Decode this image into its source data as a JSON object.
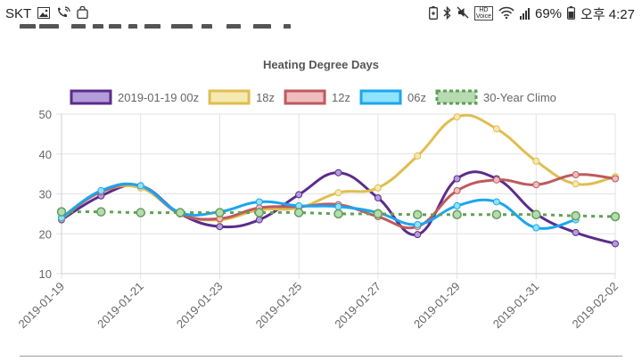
{
  "status_bar": {
    "operator": "SKT",
    "battery": "69%",
    "clock": "오후 4:27",
    "hd_badge": "HD",
    "hd_voice": "Voice",
    "icons": [
      "image-icon",
      "wifi-call-icon",
      "shopping-bag-icon",
      "battery-saver-icon",
      "bluetooth-icon",
      "mute-icon",
      "hd-voice-icon",
      "wifi-icon",
      "signal-icon"
    ]
  },
  "chart_data": {
    "type": "line",
    "title": "Heating Degree Days",
    "xlabel": "",
    "ylabel": "",
    "ylim": [
      10,
      50
    ],
    "yticks": [
      10,
      20,
      30,
      40,
      50
    ],
    "xlim": [
      "2019-01-19",
      "2019-02-02"
    ],
    "xticks": [
      "2019-01-19",
      "2019-01-21",
      "2019-01-23",
      "2019-01-25",
      "2019-01-27",
      "2019-01-29",
      "2019-01-31",
      "2019-02-02"
    ],
    "grid": true,
    "legend_position": "top",
    "series": [
      {
        "name": "2019-01-19 00z",
        "stroke": "#5b2c8b",
        "fill": "#b39ddb",
        "dashed": false,
        "points": [
          [
            "2019-01-19",
            23.5
          ],
          [
            "2019-01-20",
            29.5
          ],
          [
            "2019-01-21",
            32
          ],
          [
            "2019-01-22",
            25
          ],
          [
            "2019-01-23",
            21.8
          ],
          [
            "2019-01-24",
            23.5
          ],
          [
            "2019-01-25",
            29.8
          ],
          [
            "2019-01-26",
            35.3
          ],
          [
            "2019-01-27",
            29
          ],
          [
            "2019-01-28",
            19.8
          ],
          [
            "2019-01-29",
            33.8
          ],
          [
            "2019-01-30",
            33.8
          ],
          [
            "2019-01-31",
            25
          ],
          [
            "2019-02-01",
            20.3
          ],
          [
            "2019-02-02",
            17.5
          ]
        ]
      },
      {
        "name": "18z",
        "stroke": "#e0be50",
        "fill": "#f5e8b0",
        "dashed": false,
        "points": [
          [
            "2019-01-19",
            23.8
          ],
          [
            "2019-01-20",
            30.5
          ],
          [
            "2019-01-21",
            31.5
          ],
          [
            "2019-01-22",
            25
          ],
          [
            "2019-01-23",
            23.5
          ],
          [
            "2019-01-24",
            26
          ],
          [
            "2019-01-25",
            26.5
          ],
          [
            "2019-01-26",
            30.3
          ],
          [
            "2019-01-27",
            31.5
          ],
          [
            "2019-01-28",
            39.5
          ],
          [
            "2019-01-29",
            49.3
          ],
          [
            "2019-01-30",
            46.3
          ],
          [
            "2019-01-31",
            38.2
          ],
          [
            "2019-02-01",
            32.5
          ],
          [
            "2019-02-02",
            34.3
          ]
        ]
      },
      {
        "name": "12z",
        "stroke": "#bd5a5e",
        "fill": "#f1bcc0",
        "dashed": false,
        "points": [
          [
            "2019-01-19",
            24
          ],
          [
            "2019-01-20",
            30.5
          ],
          [
            "2019-01-21",
            32
          ],
          [
            "2019-01-22",
            25
          ],
          [
            "2019-01-23",
            23.8
          ],
          [
            "2019-01-24",
            26.5
          ],
          [
            "2019-01-25",
            26.8
          ],
          [
            "2019-01-26",
            27.3
          ],
          [
            "2019-01-27",
            24.3
          ],
          [
            "2019-01-28",
            21.8
          ],
          [
            "2019-01-29",
            30.8
          ],
          [
            "2019-01-30",
            33.5
          ],
          [
            "2019-01-31",
            32.3
          ],
          [
            "2019-02-01",
            34.8
          ],
          [
            "2019-02-02",
            33.8
          ]
        ]
      },
      {
        "name": "06z",
        "stroke": "#1aa6f0",
        "fill": "#8fe3fb",
        "dashed": false,
        "points": [
          [
            "2019-01-19",
            24
          ],
          [
            "2019-01-20",
            30.8
          ],
          [
            "2019-01-21",
            32
          ],
          [
            "2019-01-22",
            25.3
          ],
          [
            "2019-01-23",
            25.5
          ],
          [
            "2019-01-24",
            28
          ],
          [
            "2019-01-25",
            27
          ],
          [
            "2019-01-26",
            26.8
          ],
          [
            "2019-01-27",
            25.3
          ],
          [
            "2019-01-28",
            22.3
          ],
          [
            "2019-01-29",
            27
          ],
          [
            "2019-01-30",
            28
          ],
          [
            "2019-01-31",
            21.5
          ],
          [
            "2019-02-01",
            23.5
          ]
        ]
      },
      {
        "name": "30-Year Climo",
        "stroke": "#5f9f5a",
        "fill": "#b7dbb0",
        "dashed": true,
        "points": [
          [
            "2019-01-19",
            25.5
          ],
          [
            "2019-01-20",
            25.5
          ],
          [
            "2019-01-21",
            25.3
          ],
          [
            "2019-01-22",
            25.3
          ],
          [
            "2019-01-23",
            25.3
          ],
          [
            "2019-01-24",
            25.3
          ],
          [
            "2019-01-25",
            25.3
          ],
          [
            "2019-01-26",
            25
          ],
          [
            "2019-01-27",
            25
          ],
          [
            "2019-01-28",
            24.8
          ],
          [
            "2019-01-29",
            24.8
          ],
          [
            "2019-01-30",
            24.8
          ],
          [
            "2019-01-31",
            24.8
          ],
          [
            "2019-02-01",
            24.5
          ],
          [
            "2019-02-02",
            24.3
          ]
        ]
      }
    ]
  }
}
